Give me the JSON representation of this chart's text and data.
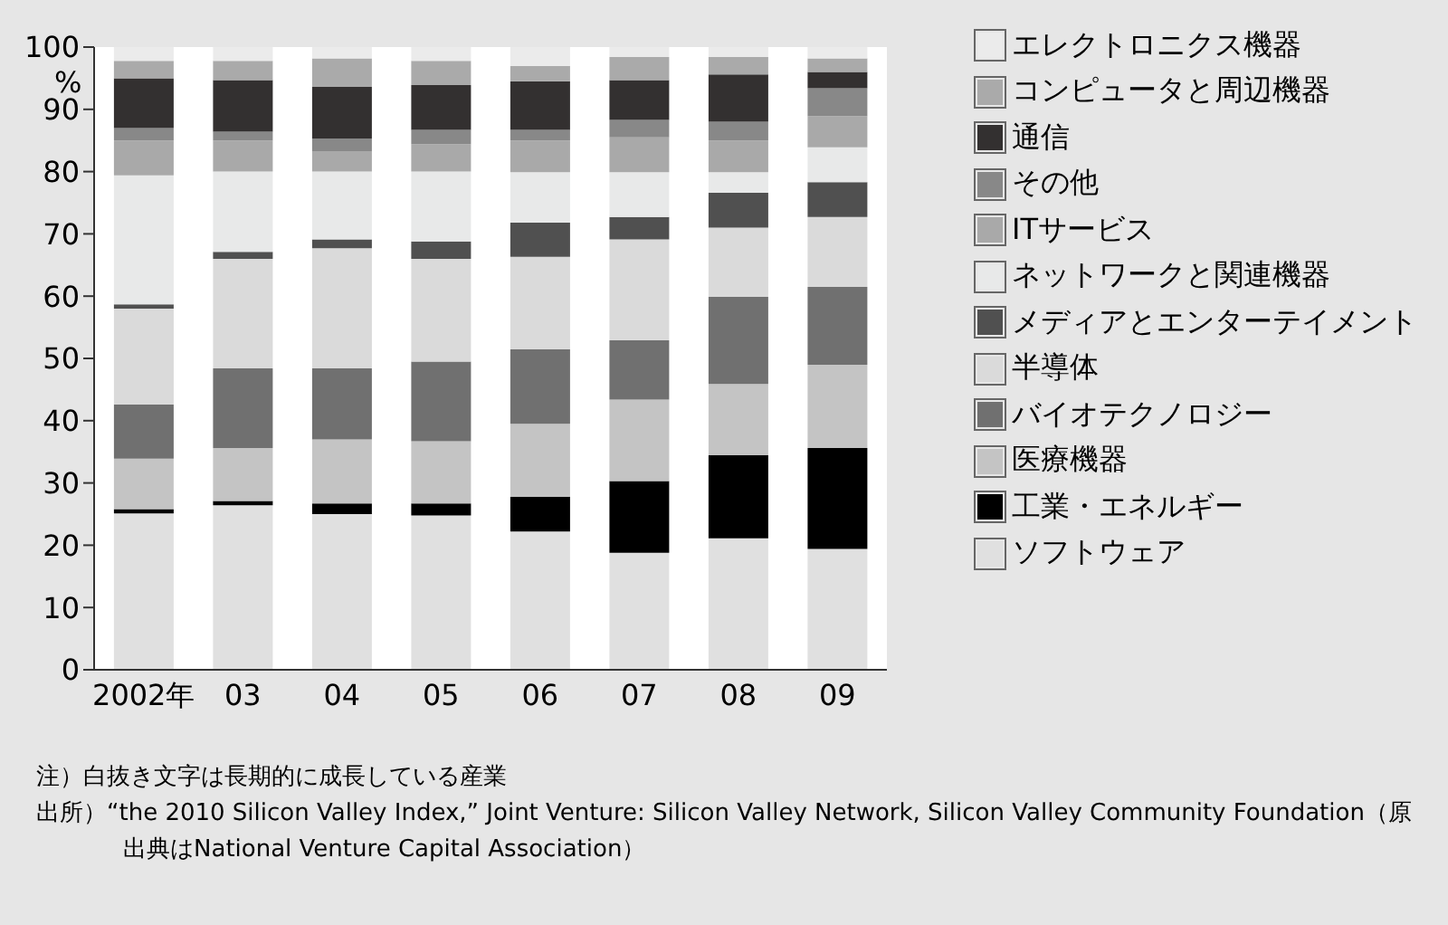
{
  "chart_data": {
    "type": "bar",
    "stacked": true,
    "ylabel": "%",
    "categories": [
      "2002年",
      "03",
      "04",
      "05",
      "06",
      "07",
      "08",
      "09"
    ],
    "ylim": [
      0,
      100
    ],
    "yticks": [
      0,
      10,
      20,
      30,
      40,
      50,
      60,
      70,
      80,
      90,
      100
    ],
    "grid": false,
    "legend": "right",
    "series": [
      {
        "name": "ソフトウェア",
        "color": "#e0e0e0",
        "values": [
          25.1,
          26.4,
          25.0,
          24.8,
          22.2,
          18.8,
          21.1,
          19.4
        ]
      },
      {
        "name": "工業・エネルギー",
        "color": "#000000",
        "values": [
          0.7,
          0.7,
          1.7,
          1.9,
          5.6,
          11.5,
          13.4,
          16.2
        ]
      },
      {
        "name": "医療機器",
        "color": "#c4c4c4",
        "values": [
          8.1,
          8.5,
          10.3,
          10.0,
          11.7,
          13.1,
          11.4,
          13.4
        ]
      },
      {
        "name": "バイオテクノロジー",
        "color": "#707070",
        "values": [
          8.7,
          12.8,
          11.4,
          12.8,
          12.0,
          9.5,
          14.0,
          12.5
        ]
      },
      {
        "name": "半導体",
        "color": "#dadada",
        "values": [
          15.4,
          17.6,
          19.3,
          16.5,
          14.8,
          16.2,
          11.1,
          11.2
        ]
      },
      {
        "name": "メディアとエンターテイメント",
        "color": "#505050",
        "values": [
          0.7,
          1.1,
          1.4,
          2.8,
          5.5,
          3.6,
          5.6,
          5.6
        ]
      },
      {
        "name": "ネットワークと関連機器",
        "color": "#e8e9e9",
        "values": [
          20.7,
          12.9,
          10.9,
          11.2,
          8.1,
          7.2,
          3.3,
          5.6
        ]
      },
      {
        "name": "ITサービス",
        "color": "#a9a9a9",
        "values": [
          5.6,
          5.0,
          3.3,
          4.4,
          5.1,
          5.6,
          5.1,
          5.0
        ]
      },
      {
        "name": "その他",
        "color": "#888888",
        "values": [
          2.0,
          1.4,
          2.0,
          2.3,
          1.7,
          2.8,
          3.0,
          4.5
        ]
      },
      {
        "name": "通信",
        "color": "#333030",
        "values": [
          8.0,
          8.3,
          8.3,
          7.2,
          7.8,
          6.4,
          7.6,
          2.6
        ]
      },
      {
        "name": "コンピュータと周辺機器",
        "color": "#aaaaaa",
        "values": [
          2.8,
          3.1,
          4.6,
          3.9,
          2.5,
          3.7,
          2.8,
          2.2
        ]
      },
      {
        "name": "エレクトロニクス機器",
        "color": "#ebebeb",
        "values": [
          2.2,
          2.2,
          1.8,
          2.2,
          3.0,
          1.6,
          1.6,
          1.8
        ]
      }
    ],
    "annotations": [
      "注）白抜き文字は長期的に成長している産業",
      "出所）“the 2010 Silicon Valley Index,” Joint Venture: Silicon Valley Network, Silicon Valley Community Foundation（原出典はNational Venture Capital Association）"
    ]
  }
}
